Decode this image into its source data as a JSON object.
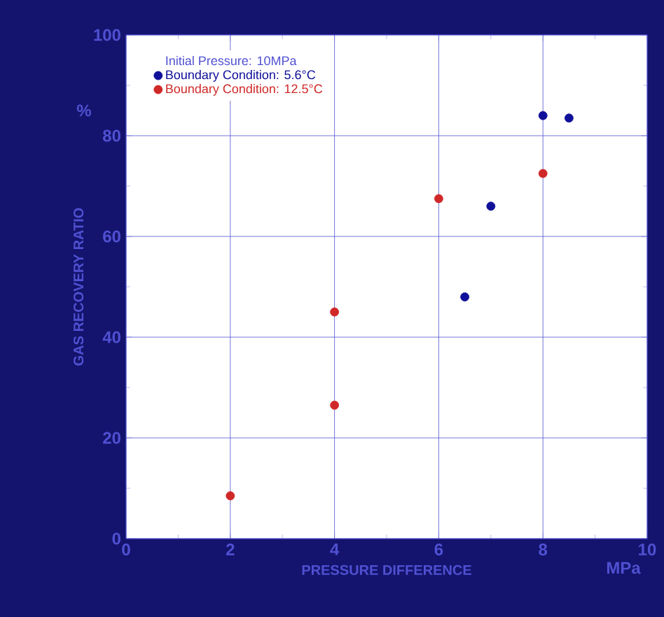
{
  "chart_data": {
    "type": "scatter",
    "xlabel": "PRESSURE DIFFERENCE",
    "ylabel": "GAS RECOVERY RATIO",
    "annotations": [
      "%",
      "MPa"
    ],
    "legend_title": "Initial Pressure: 10MPa",
    "legend": "top left",
    "grid": true,
    "marker": "circle",
    "xlim": [
      0,
      10
    ],
    "ylim": [
      0,
      100
    ],
    "xticks": [
      0,
      2,
      4,
      6,
      8,
      10
    ],
    "yticks": [
      0,
      20,
      40,
      60,
      80,
      100
    ],
    "series": [
      {
        "name": "Boundary Condition: 5.6°C",
        "color": "#10109a",
        "x": [
          6.5,
          7,
          8,
          8.5
        ],
        "values": [
          48,
          66,
          84,
          83.5
        ]
      },
      {
        "name": "Boundary Condition: 12.5°C",
        "color": "#d02828",
        "x": [
          2,
          4,
          4,
          6,
          8
        ],
        "values": [
          8.5,
          26.5,
          45,
          67.5,
          72.5
        ]
      }
    ]
  }
}
